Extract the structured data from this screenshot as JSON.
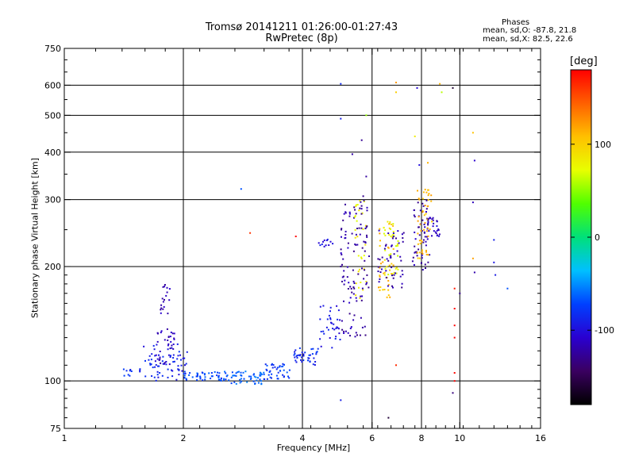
{
  "title": {
    "line1": "Tromsø 20141211 01:26:00-01:27:43",
    "line2": "RwPretec (8p)"
  },
  "phases": {
    "label": "Phases",
    "line_o": "mean, sd,O: -87.8, 21.8",
    "line_x": "mean, sd,X:  82.5, 22.6"
  },
  "colorbar": {
    "unit": "[deg]",
    "ticks": [
      {
        "value": 100,
        "label": "100"
      },
      {
        "value": 0,
        "label": "0"
      },
      {
        "value": -100,
        "label": "-100"
      }
    ],
    "range": [
      -180,
      180
    ]
  },
  "chart_data": {
    "type": "scatter",
    "title": "Tromsø 20141211 01:26:00-01:27:43",
    "subtitle": "RwPretec (8p)",
    "xlabel": "Frequency [MHz]",
    "ylabel": "Stationary phase Virtual Height [km]",
    "xscale": "log",
    "yscale": "log",
    "xlim": [
      1,
      16
    ],
    "ylim": [
      75,
      750
    ],
    "x_ticks": [
      {
        "value": 1,
        "label": "1"
      },
      {
        "value": 2,
        "label": "2"
      },
      {
        "value": 4,
        "label": "4"
      },
      {
        "value": 6,
        "label": "6"
      },
      {
        "value": 8,
        "label": "8"
      },
      {
        "value": 10,
        "label": "10"
      },
      {
        "value": 16,
        "label": "16"
      }
    ],
    "y_ticks": [
      {
        "value": 75,
        "label": "75"
      },
      {
        "value": 100,
        "label": "100"
      },
      {
        "value": 200,
        "label": "200"
      },
      {
        "value": 300,
        "label": "300"
      },
      {
        "value": 400,
        "label": "400"
      },
      {
        "value": 500,
        "label": "500"
      },
      {
        "value": 600,
        "label": "600"
      },
      {
        "value": 750,
        "label": "750"
      }
    ],
    "gridlines_x": [
      2,
      4,
      6,
      8,
      10
    ],
    "gridlines_y": [
      100,
      200,
      300,
      400,
      500,
      600
    ],
    "color_dimension": "phase [deg]",
    "clusters": [
      {
        "x": [
          1.4,
          1.48
        ],
        "y": [
          102,
          108
        ],
        "phase": -80,
        "n": 8
      },
      {
        "x": [
          1.55,
          2.05
        ],
        "y": [
          100,
          125
        ],
        "phase": -90,
        "n": 70
      },
      {
        "x": [
          1.7,
          1.9
        ],
        "y": [
          110,
          140
        ],
        "phase": -115,
        "n": 35
      },
      {
        "x": [
          1.75,
          1.85
        ],
        "y": [
          150,
          182
        ],
        "phase": -115,
        "n": 18
      },
      {
        "x": [
          2.0,
          2.6
        ],
        "y": [
          100,
          106
        ],
        "phase": -70,
        "n": 50
      },
      {
        "x": [
          2.6,
          3.2
        ],
        "y": [
          98,
          106
        ],
        "phase": -65,
        "n": 50
      },
      {
        "x": [
          3.2,
          3.75
        ],
        "y": [
          101,
          112
        ],
        "phase": -75,
        "n": 40
      },
      {
        "x": [
          3.8,
          4.4
        ],
        "y": [
          110,
          122
        ],
        "phase": -85,
        "n": 40
      },
      {
        "x": [
          4.4,
          5.0
        ],
        "y": [
          122,
          160
        ],
        "phase": -95,
        "n": 35
      },
      {
        "x": [
          4.4,
          4.8
        ],
        "y": [
          225,
          236
        ],
        "phase": -95,
        "n": 12
      },
      {
        "x": [
          5.0,
          5.5
        ],
        "y": [
          130,
          300
        ],
        "phase": -120,
        "n": 70
      },
      {
        "x": [
          5.4,
          5.8
        ],
        "y": [
          165,
          300
        ],
        "phase": 80,
        "n": 30
      },
      {
        "x": [
          5.5,
          5.9
        ],
        "y": [
          130,
          310
        ],
        "phase": -125,
        "n": 45
      },
      {
        "x": [
          6.2,
          6.8
        ],
        "y": [
          165,
          265
        ],
        "phase": 110,
        "n": 40
      },
      {
        "x": [
          6.4,
          7.0
        ],
        "y": [
          190,
          265
        ],
        "phase": 75,
        "n": 35
      },
      {
        "x": [
          6.2,
          7.3
        ],
        "y": [
          175,
          250
        ],
        "phase": -120,
        "n": 50
      },
      {
        "x": [
          7.6,
          8.4
        ],
        "y": [
          195,
          300
        ],
        "phase": -120,
        "n": 55
      },
      {
        "x": [
          7.8,
          8.5
        ],
        "y": [
          210,
          320
        ],
        "phase": 110,
        "n": 50
      },
      {
        "x": [
          8.3,
          8.9
        ],
        "y": [
          240,
          270
        ],
        "phase": -110,
        "n": 25
      }
    ],
    "scattered_points": [
      {
        "x": 2.8,
        "y": 320,
        "phase": -75
      },
      {
        "x": 2.95,
        "y": 245,
        "phase": 170
      },
      {
        "x": 3.85,
        "y": 240,
        "phase": 175
      },
      {
        "x": 5.0,
        "y": 605,
        "phase": -95
      },
      {
        "x": 5.0,
        "y": 490,
        "phase": -95
      },
      {
        "x": 5.0,
        "y": 89,
        "phase": -95
      },
      {
        "x": 5.35,
        "y": 395,
        "phase": -120
      },
      {
        "x": 5.65,
        "y": 430,
        "phase": -125
      },
      {
        "x": 5.8,
        "y": 500,
        "phase": 60
      },
      {
        "x": 5.8,
        "y": 345,
        "phase": -120
      },
      {
        "x": 6.6,
        "y": 80,
        "phase": -150
      },
      {
        "x": 6.9,
        "y": 610,
        "phase": 110
      },
      {
        "x": 6.9,
        "y": 575,
        "phase": 110
      },
      {
        "x": 6.9,
        "y": 110,
        "phase": 175
      },
      {
        "x": 7.7,
        "y": 440,
        "phase": 80
      },
      {
        "x": 7.8,
        "y": 590,
        "phase": -110
      },
      {
        "x": 7.9,
        "y": 370,
        "phase": -110
      },
      {
        "x": 8.3,
        "y": 375,
        "phase": 105
      },
      {
        "x": 8.9,
        "y": 605,
        "phase": 105
      },
      {
        "x": 9.0,
        "y": 575,
        "phase": 70
      },
      {
        "x": 9.6,
        "y": 590,
        "phase": -160
      },
      {
        "x": 9.7,
        "y": 175,
        "phase": 175
      },
      {
        "x": 9.7,
        "y": 155,
        "phase": 175
      },
      {
        "x": 9.7,
        "y": 140,
        "phase": 175
      },
      {
        "x": 9.7,
        "y": 130,
        "phase": 175
      },
      {
        "x": 9.7,
        "y": 105,
        "phase": 175
      },
      {
        "x": 9.7,
        "y": 100,
        "phase": 175
      },
      {
        "x": 9.6,
        "y": 93,
        "phase": -140
      },
      {
        "x": 10.8,
        "y": 450,
        "phase": 110
      },
      {
        "x": 10.9,
        "y": 380,
        "phase": -120
      },
      {
        "x": 10.8,
        "y": 295,
        "phase": -120
      },
      {
        "x": 10.8,
        "y": 210,
        "phase": 110
      },
      {
        "x": 10.9,
        "y": 193,
        "phase": -120
      },
      {
        "x": 12.2,
        "y": 235,
        "phase": -90
      },
      {
        "x": 12.2,
        "y": 205,
        "phase": -90
      },
      {
        "x": 12.3,
        "y": 190,
        "phase": -90
      },
      {
        "x": 13.2,
        "y": 175,
        "phase": -70
      },
      {
        "x": 10.0,
        "y": 170,
        "phase": -120
      }
    ]
  }
}
